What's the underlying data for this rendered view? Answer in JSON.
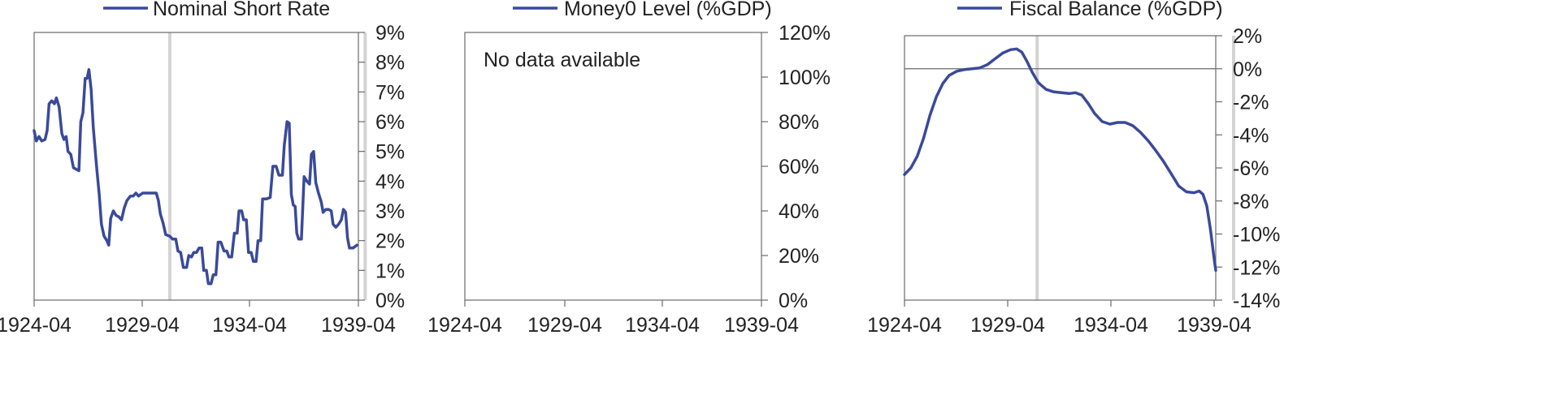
{
  "chart_data": [
    {
      "type": "line",
      "x_ticks": [
        "1924-04",
        "1929-04",
        "1934-04",
        "1939-04"
      ],
      "y_axis_side": "right",
      "ylim": [
        0,
        9
      ],
      "y_ticks": [
        "0%",
        "1%",
        "2%",
        "3%",
        "4%",
        "5%",
        "6%",
        "7%",
        "8%",
        "9%"
      ],
      "highlight_lines_x": [
        1929.3,
        1936.5
      ],
      "legend_position": "top",
      "no_data_text": "",
      "series": [
        {
          "name": "Nominal Short Rate",
          "color": "#3a4a9a",
          "points": [
            [
              1924.3,
              5.7
            ],
            [
              1924.38,
              5.35
            ],
            [
              1924.48,
              5.5
            ],
            [
              1924.58,
              5.35
            ],
            [
              1924.7,
              5.4
            ],
            [
              1924.78,
              5.7
            ],
            [
              1924.85,
              6.6
            ],
            [
              1924.95,
              6.7
            ],
            [
              1925.05,
              6.6
            ],
            [
              1925.12,
              6.8
            ],
            [
              1925.22,
              6.5
            ],
            [
              1925.32,
              5.6
            ],
            [
              1925.4,
              5.4
            ],
            [
              1925.48,
              5.5
            ],
            [
              1925.55,
              5.0
            ],
            [
              1925.65,
              4.9
            ],
            [
              1925.75,
              4.45
            ],
            [
              1925.85,
              4.4
            ],
            [
              1925.95,
              4.35
            ],
            [
              1926.02,
              6.0
            ],
            [
              1926.1,
              6.3
            ],
            [
              1926.18,
              7.45
            ],
            [
              1926.25,
              7.45
            ],
            [
              1926.32,
              7.75
            ],
            [
              1926.4,
              7.1
            ],
            [
              1926.48,
              5.8
            ],
            [
              1926.6,
              4.5
            ],
            [
              1926.7,
              3.55
            ],
            [
              1926.78,
              2.55
            ],
            [
              1926.88,
              2.15
            ],
            [
              1926.98,
              2.0
            ],
            [
              1927.05,
              1.85
            ],
            [
              1927.12,
              2.75
            ],
            [
              1927.22,
              3.0
            ],
            [
              1927.32,
              2.85
            ],
            [
              1927.42,
              2.8
            ],
            [
              1927.52,
              2.7
            ],
            [
              1927.62,
              3.1
            ],
            [
              1927.72,
              3.35
            ],
            [
              1927.85,
              3.5
            ],
            [
              1927.95,
              3.5
            ],
            [
              1928.05,
              3.6
            ],
            [
              1928.15,
              3.5
            ],
            [
              1928.3,
              3.6
            ],
            [
              1928.45,
              3.6
            ],
            [
              1928.65,
              3.6
            ],
            [
              1928.8,
              3.6
            ],
            [
              1928.88,
              3.35
            ],
            [
              1928.95,
              2.9
            ],
            [
              1929.05,
              2.6
            ],
            [
              1929.15,
              2.2
            ],
            [
              1929.3,
              2.15
            ],
            [
              1929.4,
              2.05
            ],
            [
              1929.52,
              2.05
            ],
            [
              1929.6,
              1.65
            ],
            [
              1929.7,
              1.6
            ],
            [
              1929.8,
              1.1
            ],
            [
              1929.92,
              1.1
            ],
            [
              1930.0,
              1.5
            ],
            [
              1930.1,
              1.45
            ],
            [
              1930.18,
              1.6
            ],
            [
              1930.28,
              1.6
            ],
            [
              1930.38,
              1.75
            ],
            [
              1930.48,
              1.75
            ],
            [
              1930.55,
              1.0
            ],
            [
              1930.65,
              1.0
            ],
            [
              1930.72,
              0.55
            ],
            [
              1930.82,
              0.55
            ],
            [
              1930.9,
              0.85
            ],
            [
              1931.0,
              0.85
            ],
            [
              1931.08,
              1.95
            ],
            [
              1931.18,
              1.95
            ],
            [
              1931.3,
              1.65
            ],
            [
              1931.4,
              1.65
            ],
            [
              1931.48,
              1.45
            ],
            [
              1931.58,
              1.45
            ],
            [
              1931.68,
              2.25
            ],
            [
              1931.78,
              2.25
            ],
            [
              1931.85,
              3.0
            ],
            [
              1931.95,
              3.0
            ],
            [
              1932.02,
              2.7
            ],
            [
              1932.12,
              2.7
            ],
            [
              1932.2,
              1.6
            ],
            [
              1932.3,
              1.6
            ],
            [
              1932.38,
              1.3
            ],
            [
              1932.48,
              1.3
            ],
            [
              1932.55,
              2.0
            ],
            [
              1932.65,
              2.0
            ],
            [
              1932.72,
              3.4
            ],
            [
              1932.85,
              3.4
            ],
            [
              1933.0,
              3.45
            ],
            [
              1933.1,
              4.5
            ],
            [
              1933.22,
              4.5
            ],
            [
              1933.32,
              4.2
            ],
            [
              1933.45,
              4.2
            ],
            [
              1933.52,
              5.2
            ],
            [
              1933.62,
              6.0
            ],
            [
              1933.7,
              5.95
            ],
            [
              1933.78,
              3.55
            ],
            [
              1933.85,
              3.2
            ],
            [
              1933.92,
              3.15
            ],
            [
              1933.98,
              2.25
            ],
            [
              1934.05,
              2.05
            ],
            [
              1934.15,
              2.05
            ],
            [
              1934.25,
              4.15
            ],
            [
              1934.35,
              4.0
            ],
            [
              1934.45,
              3.9
            ],
            [
              1934.52,
              4.9
            ],
            [
              1934.6,
              5.0
            ],
            [
              1934.68,
              3.95
            ],
            [
              1934.78,
              3.6
            ],
            [
              1934.88,
              3.3
            ],
            [
              1934.95,
              2.95
            ],
            [
              1935.05,
              3.05
            ],
            [
              1935.15,
              3.05
            ],
            [
              1935.25,
              3.0
            ],
            [
              1935.32,
              2.55
            ],
            [
              1935.42,
              2.45
            ],
            [
              1935.52,
              2.55
            ],
            [
              1935.62,
              2.7
            ],
            [
              1935.7,
              3.05
            ],
            [
              1935.78,
              2.95
            ],
            [
              1935.85,
              2.1
            ],
            [
              1935.92,
              1.75
            ],
            [
              1936.05,
              1.75
            ],
            [
              1936.2,
              1.85
            ]
          ]
        }
      ]
    },
    {
      "type": "line",
      "x_ticks": [
        "1924-04",
        "1929-04",
        "1934-04",
        "1939-04"
      ],
      "y_axis_side": "right",
      "ylim": [
        0,
        120
      ],
      "y_ticks": [
        "0%",
        "20%",
        "40%",
        "60%",
        "80%",
        "100%",
        "120%"
      ],
      "highlight_lines_x": [],
      "legend_position": "top",
      "no_data_text": "No data available",
      "series": [
        {
          "name": "Money0 Level (%GDP)",
          "color": "#3a4a9a",
          "points": []
        }
      ]
    },
    {
      "type": "line",
      "x_ticks": [
        "1924-04",
        "1929-04",
        "1934-04",
        "1939-04"
      ],
      "y_axis_side": "right",
      "ylim": [
        -14,
        2
      ],
      "y_ticks": [
        "-14%",
        "-12%",
        "-10%",
        "-8%",
        "-6%",
        "-4%",
        "-2%",
        "0%",
        "2%"
      ],
      "zero_line": true,
      "highlight_lines_x": [
        1929.5,
        1937.2
      ],
      "legend_position": "top",
      "no_data_text": "",
      "series": [
        {
          "name": "Fiscal Balance (%GDP)",
          "color": "#3a4a9a",
          "points": [
            [
              1924.3,
              -6.4
            ],
            [
              1924.55,
              -6.0
            ],
            [
              1924.8,
              -5.3
            ],
            [
              1925.05,
              -4.2
            ],
            [
              1925.3,
              -2.8
            ],
            [
              1925.55,
              -1.7
            ],
            [
              1925.8,
              -0.9
            ],
            [
              1926.05,
              -0.4
            ],
            [
              1926.35,
              -0.15
            ],
            [
              1926.65,
              -0.05
            ],
            [
              1926.95,
              0.0
            ],
            [
              1927.25,
              0.05
            ],
            [
              1927.55,
              0.25
            ],
            [
              1927.85,
              0.6
            ],
            [
              1928.15,
              0.95
            ],
            [
              1928.45,
              1.15
            ],
            [
              1928.7,
              1.2
            ],
            [
              1928.9,
              1.0
            ],
            [
              1929.1,
              0.45
            ],
            [
              1929.3,
              -0.2
            ],
            [
              1929.55,
              -0.85
            ],
            [
              1929.85,
              -1.25
            ],
            [
              1930.15,
              -1.4
            ],
            [
              1930.45,
              -1.45
            ],
            [
              1930.75,
              -1.5
            ],
            [
              1931.0,
              -1.45
            ],
            [
              1931.25,
              -1.6
            ],
            [
              1931.5,
              -2.1
            ],
            [
              1931.75,
              -2.7
            ],
            [
              1932.05,
              -3.2
            ],
            [
              1932.35,
              -3.35
            ],
            [
              1932.65,
              -3.25
            ],
            [
              1932.95,
              -3.25
            ],
            [
              1933.25,
              -3.45
            ],
            [
              1933.55,
              -3.85
            ],
            [
              1933.85,
              -4.35
            ],
            [
              1934.15,
              -4.95
            ],
            [
              1934.45,
              -5.6
            ],
            [
              1934.75,
              -6.35
            ],
            [
              1935.05,
              -7.1
            ],
            [
              1935.35,
              -7.45
            ],
            [
              1935.65,
              -7.5
            ],
            [
              1935.85,
              -7.4
            ],
            [
              1936.0,
              -7.6
            ],
            [
              1936.15,
              -8.3
            ],
            [
              1936.3,
              -9.8
            ],
            [
              1936.42,
              -11.3
            ],
            [
              1936.5,
              -12.2
            ]
          ]
        }
      ]
    }
  ]
}
